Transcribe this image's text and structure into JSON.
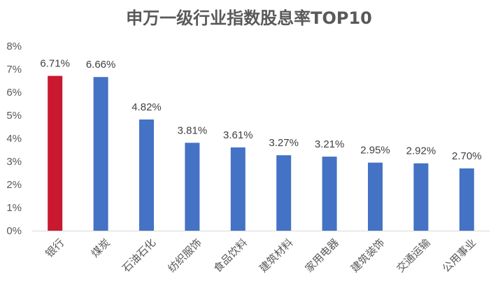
{
  "chart_data": {
    "type": "bar",
    "title": "申万一级行业指数股息率TOP10",
    "xlabel": "",
    "ylabel": "",
    "categories": [
      "银行",
      "煤炭",
      "石油石化",
      "纺织服饰",
      "食品饮料",
      "建筑材料",
      "家用电器",
      "建筑装饰",
      "交通运输",
      "公用事业"
    ],
    "values": [
      6.71,
      6.66,
      4.82,
      3.81,
      3.61,
      3.27,
      3.21,
      2.95,
      2.92,
      2.7
    ],
    "data_labels": [
      "6.71%",
      "6.66%",
      "4.82%",
      "3.81%",
      "3.61%",
      "3.27%",
      "3.21%",
      "2.95%",
      "2.92%",
      "2.70%"
    ],
    "y_ticks": [
      "0%",
      "1%",
      "2%",
      "3%",
      "4%",
      "5%",
      "6%",
      "7%",
      "8%"
    ],
    "ylim": [
      0,
      8
    ],
    "grid": false,
    "legend": "none",
    "colors": {
      "highlight": "#C8192F",
      "bar": "#4472C4",
      "axis": "#D9D9D9"
    }
  }
}
